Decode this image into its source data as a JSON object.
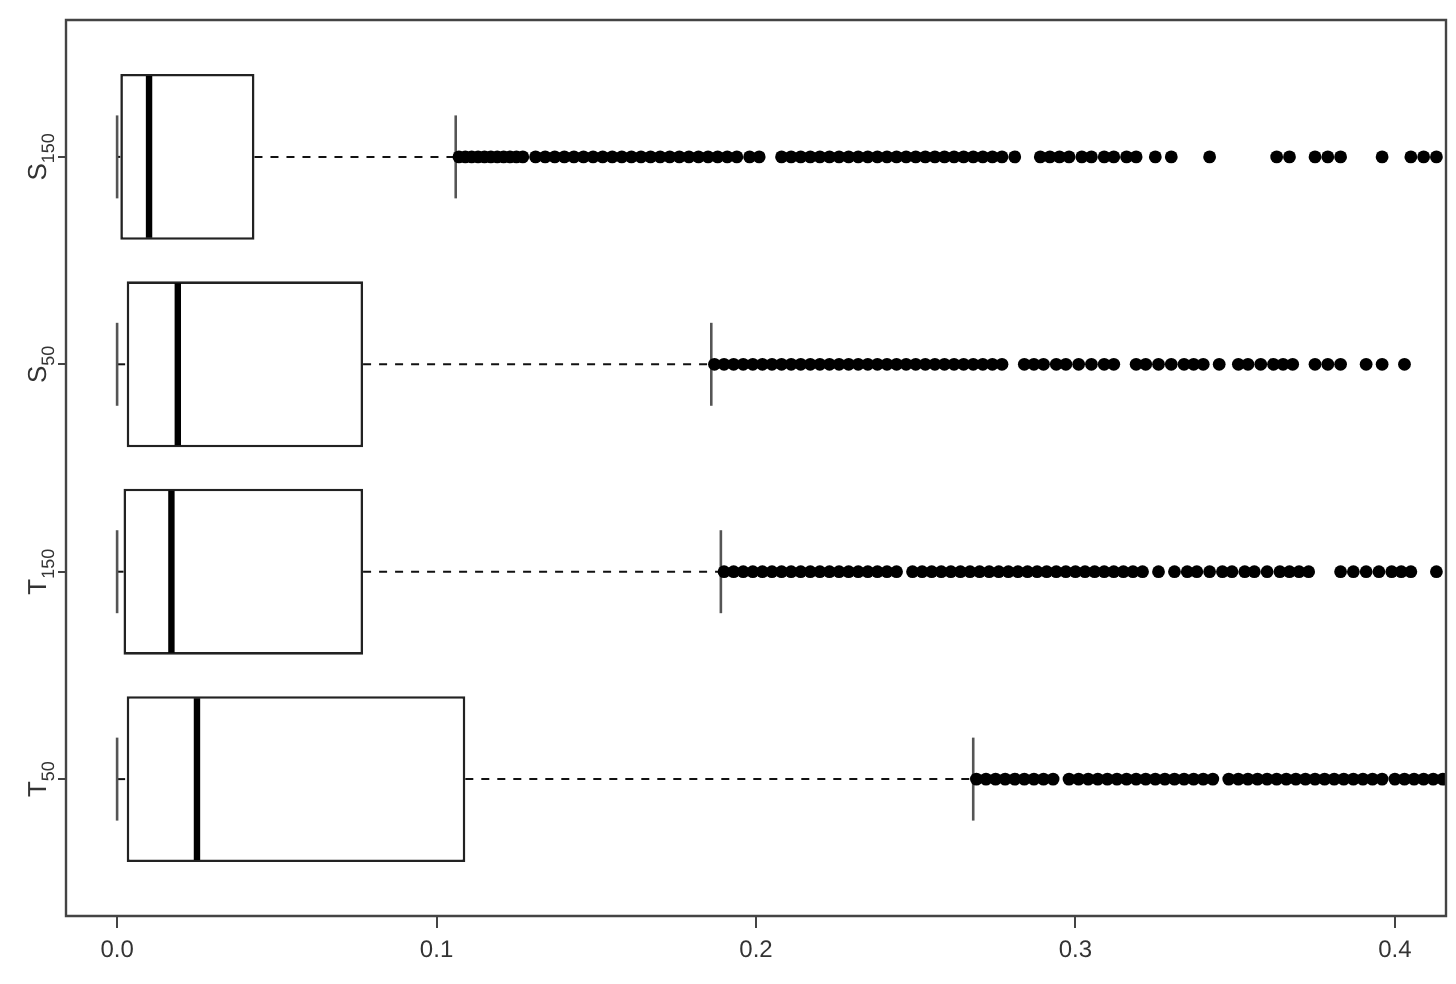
{
  "chart_data": {
    "type": "box",
    "orientation": "horizontal",
    "categories": [
      "S$_{150}$",
      "S$_{50}$",
      "T$_{150}$",
      "T$_{50}$"
    ],
    "boxes": [
      {
        "low": 0,
        "q1": 0.001,
        "median": 0.01,
        "q3": 0.043,
        "high": 0.106,
        "outliers": [
          0.107,
          0.109,
          0.111,
          0.113,
          0.115,
          0.117,
          0.119,
          0.121,
          0.123,
          0.125,
          0.127,
          0.131,
          0.134,
          0.137,
          0.14,
          0.143,
          0.146,
          0.149,
          0.152,
          0.155,
          0.158,
          0.161,
          0.164,
          0.167,
          0.17,
          0.173,
          0.176,
          0.179,
          0.182,
          0.185,
          0.188,
          0.191,
          0.194,
          0.198,
          0.201,
          0.208,
          0.211,
          0.214,
          0.217,
          0.22,
          0.223,
          0.226,
          0.229,
          0.232,
          0.235,
          0.238,
          0.241,
          0.244,
          0.247,
          0.25,
          0.253,
          0.256,
          0.259,
          0.262,
          0.265,
          0.268,
          0.271,
          0.274,
          0.277,
          0.281,
          0.289,
          0.292,
          0.295,
          0.298,
          0.302,
          0.305,
          0.309,
          0.312,
          0.316,
          0.319,
          0.325,
          0.33,
          0.342,
          0.363,
          0.367,
          0.375,
          0.379,
          0.383,
          0.396,
          0.405,
          0.409,
          0.413
        ]
      },
      {
        "low": 0,
        "q1": 0.003,
        "median": 0.019,
        "q3": 0.077,
        "high": 0.186,
        "outliers": [
          0.187,
          0.19,
          0.193,
          0.196,
          0.199,
          0.202,
          0.205,
          0.208,
          0.211,
          0.214,
          0.217,
          0.22,
          0.223,
          0.226,
          0.229,
          0.232,
          0.235,
          0.238,
          0.241,
          0.244,
          0.247,
          0.25,
          0.253,
          0.256,
          0.259,
          0.262,
          0.265,
          0.268,
          0.271,
          0.274,
          0.277,
          0.284,
          0.287,
          0.29,
          0.294,
          0.297,
          0.301,
          0.305,
          0.309,
          0.312,
          0.319,
          0.322,
          0.326,
          0.33,
          0.334,
          0.337,
          0.34,
          0.345,
          0.351,
          0.354,
          0.358,
          0.362,
          0.365,
          0.368,
          0.375,
          0.379,
          0.383,
          0.391,
          0.396,
          0.403
        ]
      },
      {
        "low": 0,
        "q1": 0.002,
        "median": 0.017,
        "q3": 0.077,
        "high": 0.189,
        "outliers": [
          0.19,
          0.193,
          0.196,
          0.199,
          0.202,
          0.205,
          0.208,
          0.211,
          0.214,
          0.217,
          0.22,
          0.223,
          0.226,
          0.229,
          0.232,
          0.235,
          0.238,
          0.241,
          0.244,
          0.249,
          0.252,
          0.255,
          0.258,
          0.261,
          0.264,
          0.267,
          0.27,
          0.273,
          0.276,
          0.279,
          0.282,
          0.285,
          0.288,
          0.291,
          0.294,
          0.297,
          0.3,
          0.303,
          0.306,
          0.309,
          0.312,
          0.315,
          0.318,
          0.321,
          0.326,
          0.331,
          0.335,
          0.338,
          0.342,
          0.346,
          0.349,
          0.353,
          0.356,
          0.36,
          0.364,
          0.367,
          0.37,
          0.373,
          0.383,
          0.387,
          0.391,
          0.395,
          0.399,
          0.402,
          0.405,
          0.413
        ]
      },
      {
        "low": 0,
        "q1": 0.003,
        "median": 0.025,
        "q3": 0.109,
        "high": 0.268,
        "outliers": [
          0.269,
          0.272,
          0.275,
          0.278,
          0.281,
          0.284,
          0.287,
          0.29,
          0.293,
          0.298,
          0.301,
          0.304,
          0.307,
          0.31,
          0.313,
          0.316,
          0.319,
          0.322,
          0.325,
          0.328,
          0.331,
          0.334,
          0.337,
          0.34,
          0.343,
          0.348,
          0.351,
          0.354,
          0.357,
          0.36,
          0.363,
          0.366,
          0.369,
          0.372,
          0.375,
          0.378,
          0.381,
          0.384,
          0.387,
          0.39,
          0.393,
          0.396,
          0.4,
          0.403,
          0.406,
          0.409,
          0.412,
          0.415
        ]
      }
    ],
    "xlim": [
      -0.016,
      0.416
    ],
    "xticks": [
      {
        "value": 0,
        "label": "0.0"
      },
      0.1,
      0.2,
      0.3,
      0.4
    ]
  }
}
